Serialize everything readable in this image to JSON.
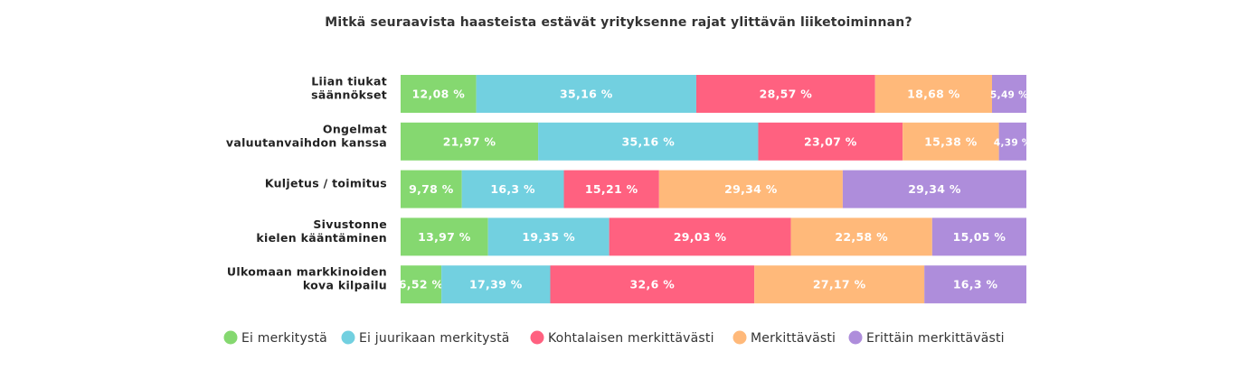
{
  "chart_data": {
    "type": "bar",
    "orientation": "horizontal",
    "stacked": true,
    "title": "Mitkä seuraavista haasteista estävät yrityksenne rajat ylittävän liiketoiminnan?",
    "categories": [
      [
        "Liian tiukat",
        "säännökset"
      ],
      [
        "Ongelmat",
        "valuutanvaihdon kanssa"
      ],
      [
        "Kuljetus / toimitus"
      ],
      [
        "Sivustonne",
        "kielen kääntäminen"
      ],
      [
        "Ulkomaan markkinoiden",
        "kova kilpailu"
      ]
    ],
    "series": [
      {
        "name": "Ei merkitystä",
        "color": "#85d870",
        "values": [
          12.08,
          21.97,
          9.78,
          13.97,
          6.52
        ],
        "labels": [
          "12,08 %",
          "21,97 %",
          "9,78 %",
          "13,97 %",
          "6,52 %"
        ]
      },
      {
        "name": "Ei juurikaan merkitystä",
        "color": "#72d0e0",
        "values": [
          35.16,
          35.16,
          16.3,
          19.35,
          17.39
        ],
        "labels": [
          "35,16 %",
          "35,16 %",
          "16,3 %",
          "19,35 %",
          "17,39 %"
        ]
      },
      {
        "name": "Kohtalaisen merkittävästi",
        "color": "#ff6180",
        "values": [
          28.57,
          23.07,
          15.21,
          29.03,
          32.6
        ],
        "labels": [
          "28,57 %",
          "23,07 %",
          "15,21 %",
          "29,03 %",
          "32,6 %"
        ]
      },
      {
        "name": "Merkittävästi",
        "color": "#ffb97a",
        "values": [
          18.68,
          15.38,
          29.34,
          22.58,
          27.17
        ],
        "labels": [
          "18,68 %",
          "15,38 %",
          "29,34 %",
          "22,58 %",
          "27,17 %"
        ]
      },
      {
        "name": "Erittäin merkittävästi",
        "color": "#ae8ddb",
        "values": [
          5.49,
          4.39,
          29.34,
          15.05,
          16.3
        ],
        "labels": [
          "5,49 %",
          "4,39 %",
          "29,34 %",
          "15,05 %",
          "16,3 %"
        ]
      }
    ],
    "xlim": [
      0,
      100
    ],
    "grid": false,
    "legend_position": "bottom"
  }
}
